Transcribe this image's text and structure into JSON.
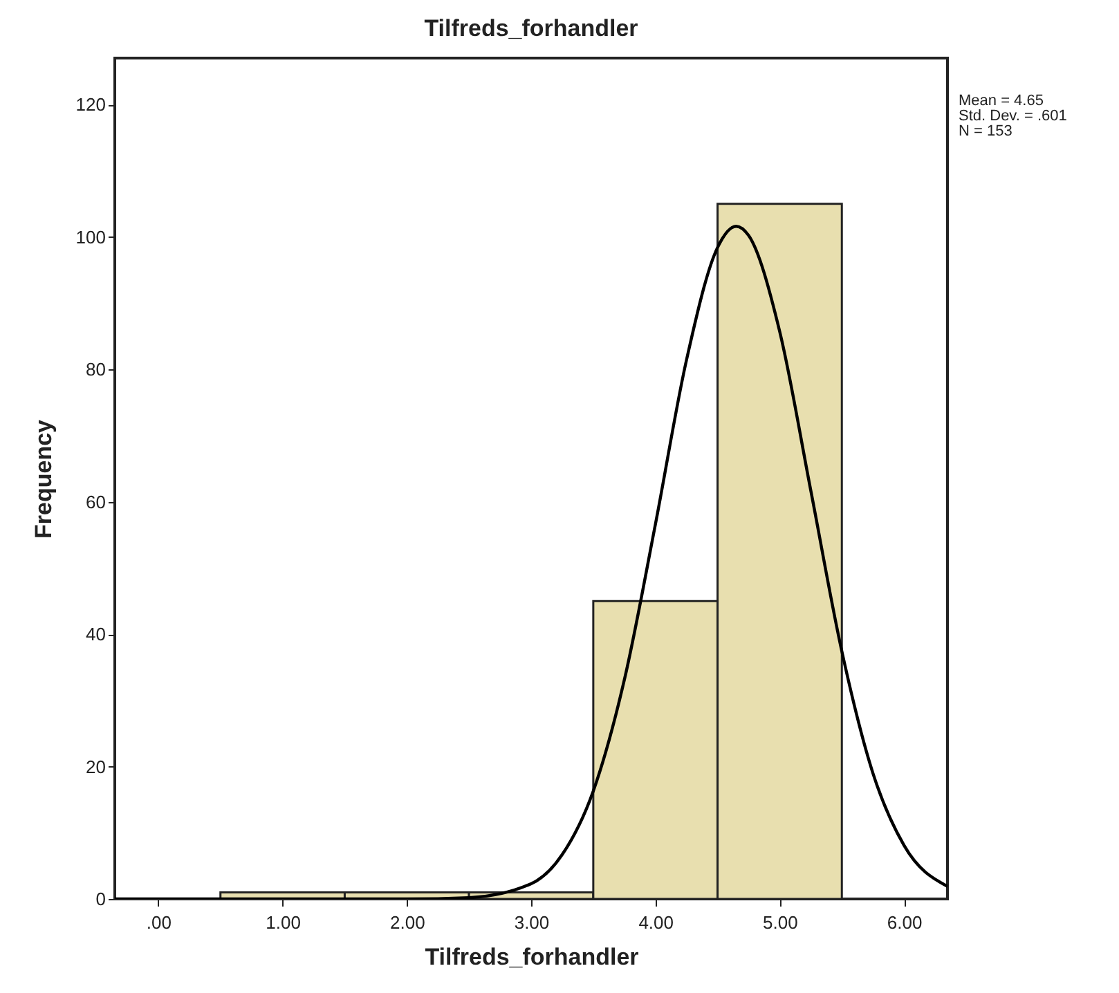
{
  "chart_data": {
    "type": "histogram",
    "title": "Tilfreds_forhandler",
    "xlabel": "Tilfreds_forhandler",
    "ylabel": "Frequency",
    "bins": [
      0.5,
      1.5,
      2.5,
      3.5,
      4.5,
      5.5
    ],
    "values": [
      1,
      1,
      1,
      45,
      105
    ],
    "color": "#e8dfaf",
    "series": [
      {
        "type": "line",
        "color": "#000000",
        "x": [
          -0.35,
          1.0,
          2.0,
          2.5,
          3.0,
          3.25,
          3.5,
          3.75,
          4.0,
          4.25,
          4.5,
          4.65,
          4.75,
          5.0,
          5.25,
          5.5,
          5.75,
          6.0,
          6.35
        ],
        "values": [
          0,
          0,
          0,
          0.2,
          2.3,
          6.7,
          16.3,
          33.1,
          56.6,
          81.4,
          98.4,
          101.6,
          100.2,
          85.7,
          61.7,
          37.4,
          19.0,
          8.1,
          1.9
        ]
      }
    ],
    "xlim": [
      -0.35,
      6.35
    ],
    "xticks": [
      {
        "value": 0,
        "label": ".00"
      },
      {
        "value": 1,
        "label": "1.00"
      },
      {
        "value": 2,
        "label": "2.00"
      },
      {
        "value": 3,
        "label": "3.00"
      },
      {
        "value": 4,
        "label": "4.00"
      },
      {
        "value": 5,
        "label": "5.00"
      },
      {
        "value": 6,
        "label": "6.00"
      }
    ],
    "ylim": [
      0,
      127
    ],
    "yticks": [
      0,
      20,
      40,
      60,
      80,
      100,
      120
    ],
    "grid": false,
    "annotations": [
      "Mean = 4.65",
      "Std. Dev. = .601",
      "N = 153"
    ]
  }
}
